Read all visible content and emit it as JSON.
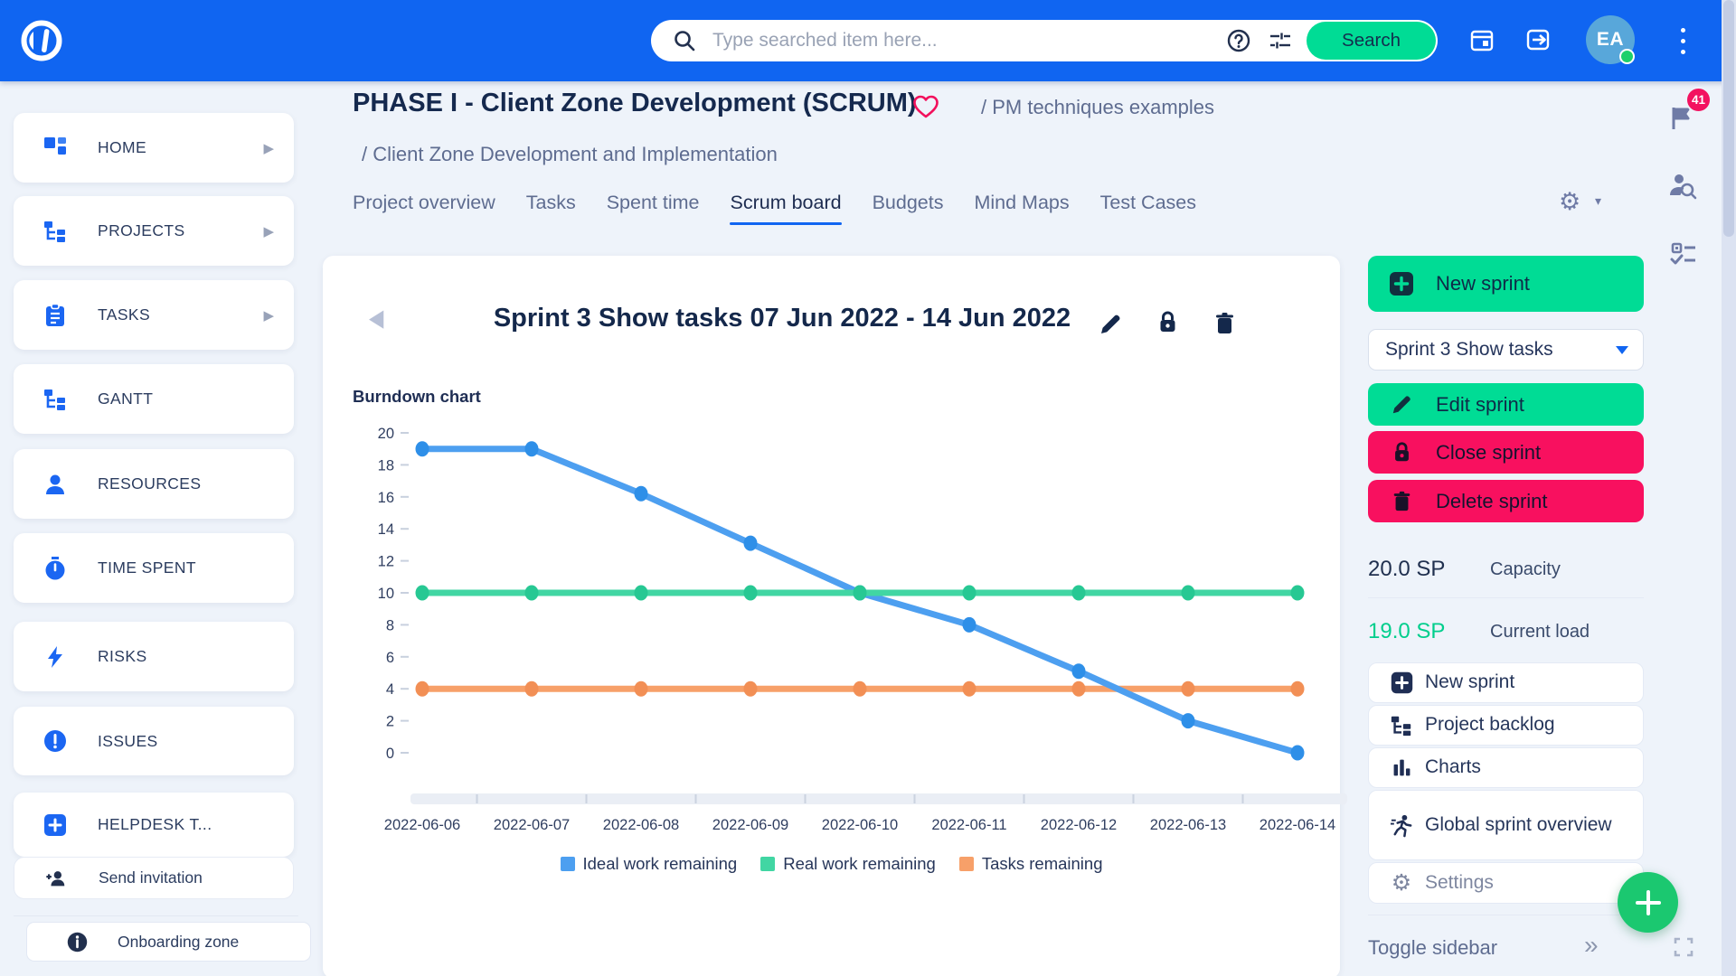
{
  "colors": {
    "topbar": "#1065F1",
    "accent": "#1B66F2",
    "green": "#00DC95",
    "fabgreen": "#1BC870",
    "pink": "#F8105F",
    "badgered": "#F31260",
    "loadgreen": "#00CE8C",
    "navy": "#15294E"
  },
  "topbar": {
    "search_placeholder": "Type searched item here...",
    "search_button": "Search",
    "avatar_initials": "EA"
  },
  "right_rail": {
    "flag_badge": "41"
  },
  "sidebar": {
    "items": [
      {
        "label": "HOME"
      },
      {
        "label": "PROJECTS"
      },
      {
        "label": "TASKS"
      },
      {
        "label": "GANTT"
      },
      {
        "label": "RESOURCES"
      },
      {
        "label": "TIME SPENT"
      },
      {
        "label": "RISKS"
      },
      {
        "label": "ISSUES"
      },
      {
        "label": "HELPDESK T..."
      }
    ],
    "send_invitation": "Send invitation",
    "onboarding": "Onboarding zone"
  },
  "header": {
    "title": "PHASE I - Client Zone Development (SCRUM)",
    "breadcrumb": "/ PM techniques examples",
    "sub_breadcrumb": "/ Client Zone Development and Implementation",
    "tabs": [
      "Project overview",
      "Tasks",
      "Spent time",
      "Scrum board",
      "Budgets",
      "Mind Maps",
      "Test Cases"
    ],
    "active_tab": "Scrum board"
  },
  "sprint_header": {
    "title": "Sprint 3 Show tasks 07 Jun 2022 - 14 Jun 2022"
  },
  "chart_data": {
    "type": "line",
    "title": "Burndown chart",
    "x": [
      "2022-06-06",
      "2022-06-07",
      "2022-06-08",
      "2022-06-09",
      "2022-06-10",
      "2022-06-11",
      "2022-06-12",
      "2022-06-13",
      "2022-06-14"
    ],
    "ylim": [
      0,
      20
    ],
    "ytick_step": 2,
    "grid": false,
    "legend_position": "bottom",
    "series": [
      {
        "name": "Ideal work remaining",
        "color": "#4D9FF0",
        "point_color": "#2E8FE8",
        "values": [
          19,
          19,
          16.2,
          13.1,
          10,
          8,
          5.1,
          2,
          0
        ]
      },
      {
        "name": "Real work remaining",
        "color": "#41D6A3",
        "point_color": "#27C893",
        "values": [
          10,
          10,
          10,
          10,
          10,
          10,
          10,
          10,
          10
        ]
      },
      {
        "name": "Tasks remaining",
        "color": "#F7A069",
        "point_color": "#F28F55",
        "values": [
          4,
          4,
          4,
          4,
          4,
          4,
          4,
          4,
          4
        ]
      }
    ]
  },
  "panel": {
    "new_sprint": "New sprint",
    "selector_value": "Sprint 3 Show tasks",
    "edit": "Edit sprint",
    "close": "Close sprint",
    "delete": "Delete sprint",
    "capacity_value": "20.0 SP",
    "capacity_label": "Capacity",
    "load_value": "19.0 SP",
    "load_label": "Current load",
    "actions": [
      {
        "label": "New sprint"
      },
      {
        "label": "Project backlog"
      },
      {
        "label": "Charts"
      },
      {
        "label": "Global sprint overview"
      },
      {
        "label": "Settings"
      }
    ],
    "toggle_label": "Toggle sidebar"
  }
}
